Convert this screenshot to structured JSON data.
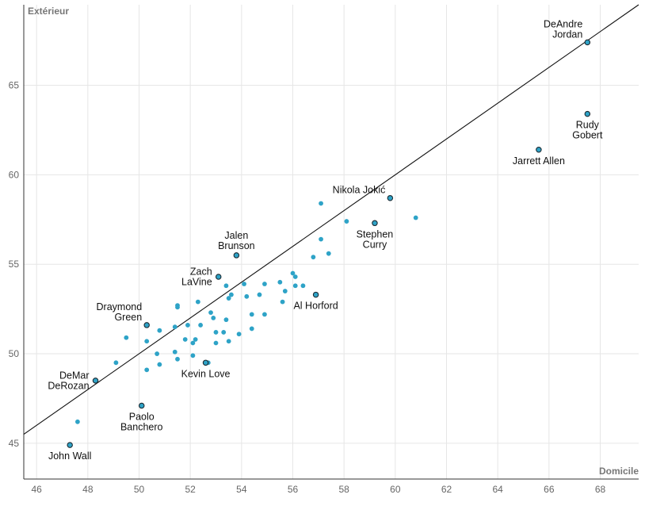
{
  "chart_data": {
    "type": "scatter",
    "title": "",
    "xlabel": "Domicile",
    "ylabel": "Extérieur",
    "xlim": [
      45.5,
      69.5
    ],
    "ylim": [
      43,
      69.5
    ],
    "xticks": [
      46,
      48,
      50,
      52,
      54,
      56,
      58,
      60,
      62,
      64,
      66,
      68
    ],
    "yticks": [
      45,
      50,
      55,
      60,
      65
    ],
    "grid": true,
    "reference_line": "y = x",
    "highlighted": [
      {
        "label": [
          "DeAndre",
          "Jordan"
        ],
        "x": 67.5,
        "y": 67.4,
        "label_pos": "above-left"
      },
      {
        "label": [
          "Rudy",
          "Gobert"
        ],
        "x": 67.5,
        "y": 63.4,
        "label_pos": "below"
      },
      {
        "label": [
          "Jarrett Allen"
        ],
        "x": 65.6,
        "y": 61.4,
        "label_pos": "below"
      },
      {
        "label": [
          "Nikola Jokić"
        ],
        "x": 59.8,
        "y": 58.7,
        "label_pos": "above-left"
      },
      {
        "label": [
          "Stephen",
          "Curry"
        ],
        "x": 59.2,
        "y": 57.3,
        "label_pos": "below"
      },
      {
        "label": [
          "Jalen",
          "Brunson"
        ],
        "x": 53.8,
        "y": 55.5,
        "label_pos": "above"
      },
      {
        "label": [
          "Zach",
          "LaVine"
        ],
        "x": 53.1,
        "y": 54.3,
        "label_pos": "left"
      },
      {
        "label": [
          "Al Horford"
        ],
        "x": 56.9,
        "y": 53.3,
        "label_pos": "below"
      },
      {
        "label": [
          "Draymond",
          "Green"
        ],
        "x": 50.3,
        "y": 51.6,
        "label_pos": "above-left"
      },
      {
        "label": [
          "Kevin Love"
        ],
        "x": 52.6,
        "y": 49.5,
        "label_pos": "below"
      },
      {
        "label": [
          "DeMar",
          "DeRozan"
        ],
        "x": 48.3,
        "y": 48.5,
        "label_pos": "left"
      },
      {
        "label": [
          "Paolo",
          "Banchero"
        ],
        "x": 50.1,
        "y": 47.1,
        "label_pos": "below"
      },
      {
        "label": [
          "John Wall"
        ],
        "x": 47.3,
        "y": 44.9,
        "label_pos": "below"
      }
    ],
    "points": [
      {
        "x": 47.6,
        "y": 46.2
      },
      {
        "x": 49.1,
        "y": 49.5
      },
      {
        "x": 49.5,
        "y": 50.9
      },
      {
        "x": 50.3,
        "y": 50.7
      },
      {
        "x": 50.3,
        "y": 49.1
      },
      {
        "x": 50.7,
        "y": 50.0
      },
      {
        "x": 50.8,
        "y": 49.4
      },
      {
        "x": 50.8,
        "y": 51.3
      },
      {
        "x": 51.4,
        "y": 51.5
      },
      {
        "x": 51.4,
        "y": 50.1
      },
      {
        "x": 51.5,
        "y": 49.7
      },
      {
        "x": 51.5,
        "y": 52.6
      },
      {
        "x": 51.5,
        "y": 52.7
      },
      {
        "x": 51.8,
        "y": 50.8
      },
      {
        "x": 51.9,
        "y": 51.6
      },
      {
        "x": 52.1,
        "y": 50.6
      },
      {
        "x": 52.1,
        "y": 49.9
      },
      {
        "x": 52.2,
        "y": 50.8
      },
      {
        "x": 52.3,
        "y": 52.9
      },
      {
        "x": 52.4,
        "y": 51.6
      },
      {
        "x": 52.7,
        "y": 49.5
      },
      {
        "x": 52.8,
        "y": 52.3
      },
      {
        "x": 52.9,
        "y": 52.0
      },
      {
        "x": 53.0,
        "y": 50.6
      },
      {
        "x": 53.0,
        "y": 51.2
      },
      {
        "x": 53.3,
        "y": 51.2
      },
      {
        "x": 53.4,
        "y": 51.9
      },
      {
        "x": 53.4,
        "y": 53.8
      },
      {
        "x": 53.5,
        "y": 53.1
      },
      {
        "x": 53.5,
        "y": 50.7
      },
      {
        "x": 53.6,
        "y": 53.3
      },
      {
        "x": 53.9,
        "y": 51.1
      },
      {
        "x": 54.1,
        "y": 53.9
      },
      {
        "x": 54.2,
        "y": 53.2
      },
      {
        "x": 54.4,
        "y": 52.2
      },
      {
        "x": 54.4,
        "y": 51.4
      },
      {
        "x": 54.7,
        "y": 53.3
      },
      {
        "x": 54.9,
        "y": 53.9
      },
      {
        "x": 54.9,
        "y": 52.2
      },
      {
        "x": 55.5,
        "y": 54.0
      },
      {
        "x": 55.6,
        "y": 52.9
      },
      {
        "x": 55.7,
        "y": 53.5
      },
      {
        "x": 56.0,
        "y": 54.5
      },
      {
        "x": 56.1,
        "y": 54.3
      },
      {
        "x": 56.1,
        "y": 53.8
      },
      {
        "x": 56.4,
        "y": 53.8
      },
      {
        "x": 56.8,
        "y": 55.4
      },
      {
        "x": 57.1,
        "y": 56.4
      },
      {
        "x": 57.1,
        "y": 58.4
      },
      {
        "x": 57.4,
        "y": 55.6
      },
      {
        "x": 58.1,
        "y": 57.4
      },
      {
        "x": 60.8,
        "y": 57.6
      }
    ]
  }
}
